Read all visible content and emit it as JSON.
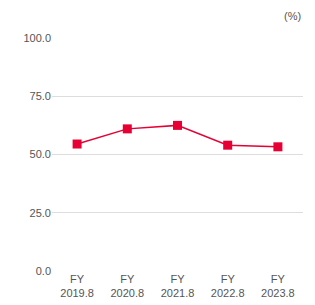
{
  "chart_data": {
    "type": "line",
    "ylabel": "(%)",
    "categories": [
      "FY\n2019.8",
      "FY\n2020.8",
      "FY\n2021.8",
      "FY\n2022.8",
      "FY\n2023.8"
    ],
    "values": [
      54.5,
      61.0,
      62.5,
      54.0,
      53.3
    ],
    "color": "#e60033",
    "marker": "square",
    "ylim": [
      0,
      100
    ],
    "yticks": [
      {
        "value": 0,
        "label": "0.0"
      },
      {
        "value": 25,
        "label": "25.0"
      },
      {
        "value": 50,
        "label": "50.0"
      },
      {
        "value": 75,
        "label": "75.0"
      },
      {
        "value": 100,
        "label": "100.0"
      }
    ],
    "grid": true
  }
}
